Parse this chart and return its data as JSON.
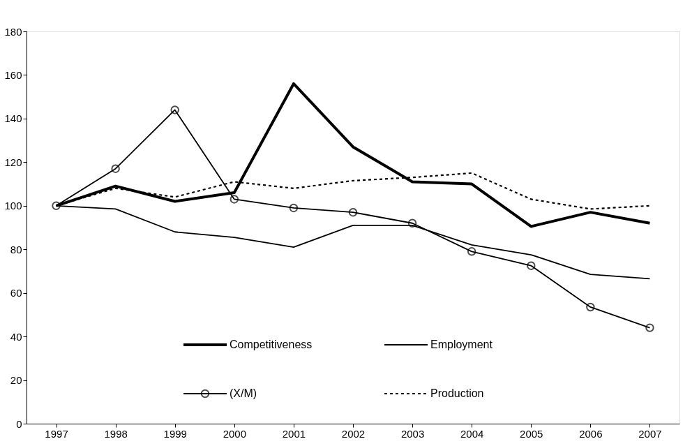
{
  "chart_data": {
    "type": "line",
    "categories": [
      "1997",
      "1998",
      "1999",
      "2000",
      "2001",
      "2002",
      "2003",
      "2004",
      "2005",
      "2006",
      "2007"
    ],
    "ylim": [
      0,
      180
    ],
    "yticks": [
      0,
      20,
      40,
      60,
      80,
      100,
      120,
      140,
      160,
      180
    ],
    "grid": false,
    "legend": "bottom",
    "series": [
      {
        "name": "Competitiveness",
        "color": "#000000",
        "line_style": "solid",
        "marker": "none",
        "values": [
          100,
          109,
          102,
          106,
          156,
          127,
          111,
          110,
          90.5,
          97,
          92
        ]
      },
      {
        "name": "Employment",
        "color": "#000000",
        "line_style": "solid",
        "marker": "none",
        "values": [
          100,
          98.5,
          88,
          85.5,
          81,
          91,
          91,
          82,
          77.5,
          68.5,
          66.5
        ]
      },
      {
        "name": "(X/M)",
        "color": "#000000",
        "line_style": "solid",
        "marker": "circle",
        "values": [
          100,
          117,
          144,
          103,
          99,
          97,
          92,
          79,
          72.5,
          53.5,
          44
        ]
      },
      {
        "name": "Production",
        "color": "#000000",
        "line_style": "dashed",
        "marker": "none",
        "values": [
          100,
          108,
          104,
          111,
          108,
          111.5,
          113,
          115,
          103,
          98.5,
          100
        ]
      }
    ]
  }
}
